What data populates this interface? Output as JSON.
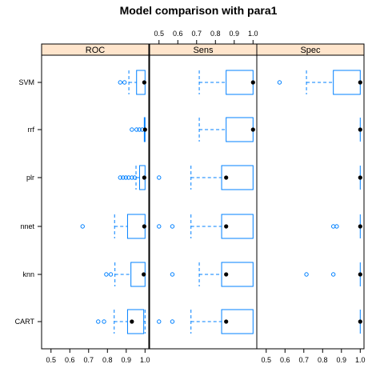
{
  "chart_data": {
    "type": "boxplot",
    "title": "Model comparison with para1",
    "categories": [
      "CART",
      "knn",
      "nnet",
      "plr",
      "rrf",
      "SVM"
    ],
    "xlim": [
      0.45,
      1.02
    ],
    "ticks": [
      0.5,
      0.6,
      0.7,
      0.8,
      0.9,
      1.0
    ],
    "tick_labels": [
      "0.5",
      "0.6",
      "0.7",
      "0.8",
      "0.9",
      "1.0"
    ],
    "colors": {
      "strip": "#ffe5cc",
      "box": "#0080ff",
      "median": "#000000",
      "outlier": "#0080ff"
    },
    "panels": [
      {
        "name": "ROC",
        "tick_side": "bottom",
        "stats": [
          {
            "model": "CART",
            "whisker_low": 0.836,
            "q1": 0.907,
            "median": 0.93,
            "q3": 0.993,
            "whisker_high": 1.0,
            "outliers": [
              0.751,
              0.782
            ]
          },
          {
            "model": "knn",
            "whisker_low": 0.84,
            "q1": 0.925,
            "median": 0.993,
            "q3": 1.0,
            "whisker_high": 1.0,
            "outliers": [
              0.794,
              0.818
            ]
          },
          {
            "model": "nnet",
            "whisker_low": 0.838,
            "q1": 0.907,
            "median": 0.996,
            "q3": 1.0,
            "whisker_high": 1.0,
            "outliers": [
              0.668
            ]
          },
          {
            "model": "plr",
            "whisker_low": 0.952,
            "q1": 0.971,
            "median": 0.996,
            "q3": 1.0,
            "whisker_high": 1.0,
            "outliers": [
              0.868,
              0.883,
              0.898,
              0.913,
              0.93,
              0.945
            ]
          },
          {
            "model": "rrf",
            "whisker_low": 0.996,
            "q1": 0.996,
            "median": 1.0,
            "q3": 1.0,
            "whisker_high": 1.0,
            "outliers": [
              0.93,
              0.955,
              0.97,
              0.985
            ]
          },
          {
            "model": "SVM",
            "whisker_low": 0.914,
            "q1": 0.955,
            "median": 0.996,
            "q3": 1.0,
            "whisker_high": 1.0,
            "outliers": [
              0.868,
              0.891
            ]
          }
        ]
      },
      {
        "name": "Sens",
        "tick_side": "top",
        "stats": [
          {
            "model": "CART",
            "whisker_low": 0.67,
            "q1": 0.833,
            "median": 0.857,
            "q3": 1.0,
            "whisker_high": 1.0,
            "outliers": [
              0.5,
              0.571
            ]
          },
          {
            "model": "knn",
            "whisker_low": 0.714,
            "q1": 0.833,
            "median": 0.857,
            "q3": 1.0,
            "whisker_high": 1.0,
            "outliers": [
              0.571
            ]
          },
          {
            "model": "nnet",
            "whisker_low": 0.67,
            "q1": 0.833,
            "median": 0.857,
            "q3": 1.0,
            "whisker_high": 1.0,
            "outliers": [
              0.5,
              0.571
            ]
          },
          {
            "model": "plr",
            "whisker_low": 0.67,
            "q1": 0.833,
            "median": 0.857,
            "q3": 1.0,
            "whisker_high": 1.0,
            "outliers": [
              0.5
            ]
          },
          {
            "model": "rrf",
            "whisker_low": 0.714,
            "q1": 0.857,
            "median": 1.0,
            "q3": 1.0,
            "whisker_high": 1.0,
            "outliers": []
          },
          {
            "model": "SVM",
            "whisker_low": 0.714,
            "q1": 0.857,
            "median": 1.0,
            "q3": 1.0,
            "whisker_high": 1.0,
            "outliers": []
          }
        ]
      },
      {
        "name": "Spec",
        "tick_side": "bottom",
        "stats": [
          {
            "model": "CART",
            "whisker_low": 1.0,
            "q1": 1.0,
            "median": 1.0,
            "q3": 1.0,
            "whisker_high": 1.0,
            "outliers": []
          },
          {
            "model": "knn",
            "whisker_low": 1.0,
            "q1": 1.0,
            "median": 1.0,
            "q3": 1.0,
            "whisker_high": 1.0,
            "outliers": [
              0.714,
              0.857
            ]
          },
          {
            "model": "nnet",
            "whisker_low": 1.0,
            "q1": 1.0,
            "median": 1.0,
            "q3": 1.0,
            "whisker_high": 1.0,
            "outliers": [
              0.857,
              0.875
            ]
          },
          {
            "model": "plr",
            "whisker_low": 1.0,
            "q1": 1.0,
            "median": 1.0,
            "q3": 1.0,
            "whisker_high": 1.0,
            "outliers": []
          },
          {
            "model": "rrf",
            "whisker_low": 1.0,
            "q1": 1.0,
            "median": 1.0,
            "q3": 1.0,
            "whisker_high": 1.0,
            "outliers": []
          },
          {
            "model": "SVM",
            "whisker_low": 0.714,
            "q1": 0.857,
            "median": 1.0,
            "q3": 1.0,
            "whisker_high": 1.0,
            "outliers": [
              0.571
            ]
          }
        ]
      }
    ]
  }
}
